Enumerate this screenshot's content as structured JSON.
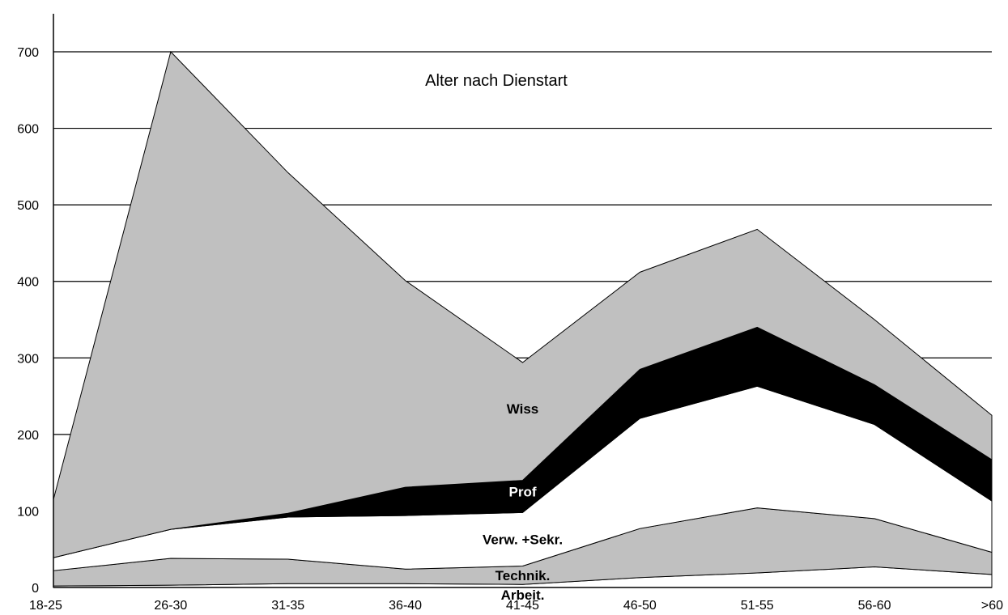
{
  "chart_data": {
    "type": "area",
    "stacked": true,
    "title": "Alter nach Dienstart",
    "xlabel": "",
    "ylabel": "",
    "categories": [
      "18-25",
      "26-30",
      "31-35",
      "36-40",
      "41-45",
      "46-50",
      "51-55",
      "56-60",
      ">60"
    ],
    "ylim": [
      0,
      700
    ],
    "yticks": [
      0,
      100,
      200,
      300,
      400,
      500,
      600,
      700
    ],
    "grid": true,
    "series": [
      {
        "name": "Arbeit.",
        "color": "#ffffff",
        "values": [
          2,
          3,
          5,
          5,
          4,
          13,
          19,
          27,
          17
        ]
      },
      {
        "name": "Technik.",
        "color": "#c0c0c0",
        "values": [
          20,
          35,
          32,
          19,
          24,
          64,
          85,
          63,
          29
        ]
      },
      {
        "name": "Verw. +Sekr.",
        "color": "#ffffff",
        "values": [
          17,
          38,
          55,
          70,
          70,
          144,
          159,
          123,
          67
        ]
      },
      {
        "name": "Prof",
        "color": "#000000",
        "values": [
          0,
          0,
          5,
          37,
          42,
          64,
          77,
          52,
          54
        ]
      },
      {
        "name": "Wiss",
        "color": "#c0c0c0",
        "values": [
          76,
          624,
          445,
          270,
          154,
          127,
          128,
          85,
          58
        ]
      }
    ]
  }
}
